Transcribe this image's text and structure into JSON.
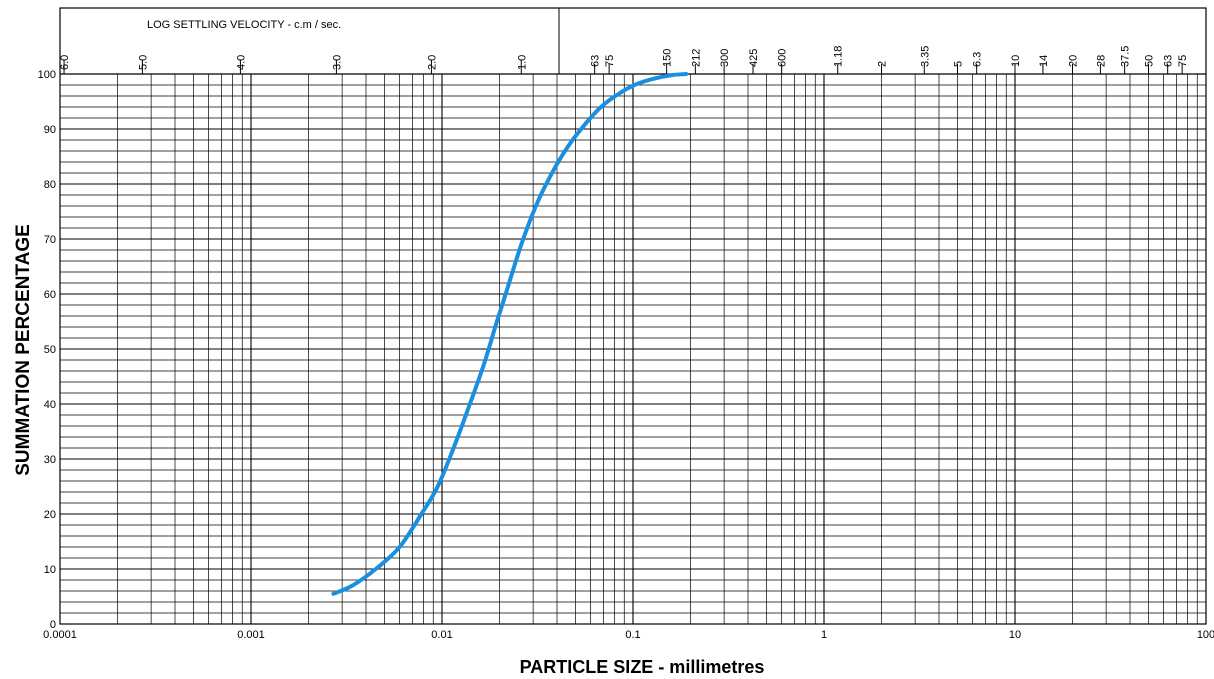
{
  "chart_data": {
    "type": "line",
    "title": "",
    "xlabel": "PARTICLE SIZE - millimetres",
    "ylabel": "SUMMATION PERCENTAGE",
    "top_axis_label": "LOG SETTLING VELOCITY - c.m / sec.",
    "x_scale": "log",
    "xlim": [
      0.0001,
      100
    ],
    "ylim": [
      0,
      100
    ],
    "grid": true,
    "x_ticks": [
      {
        "value": 0.0001,
        "label": "0.0001"
      },
      {
        "value": 0.001,
        "label": "0.001"
      },
      {
        "value": 0.01,
        "label": "0.01"
      },
      {
        "value": 0.1,
        "label": "0.1"
      },
      {
        "value": 1,
        "label": "1"
      },
      {
        "value": 10,
        "label": "10"
      },
      {
        "value": 100,
        "label": "100"
      }
    ],
    "y_ticks": [
      0,
      10,
      20,
      30,
      40,
      50,
      60,
      70,
      80,
      90,
      100
    ],
    "settling_velocity_ticks": [
      {
        "value": 0.000105,
        "label": "6.0"
      },
      {
        "value": 0.00027,
        "label": "5.0"
      },
      {
        "value": 0.00088,
        "label": "4.0"
      },
      {
        "value": 0.0028,
        "label": "3.0"
      },
      {
        "value": 0.0088,
        "label": "2.0"
      },
      {
        "value": 0.026,
        "label": "1.0"
      }
    ],
    "sieve_ticks": [
      {
        "value": 0.063,
        "label": "63"
      },
      {
        "value": 0.075,
        "label": "75"
      },
      {
        "value": 0.15,
        "label": "150"
      },
      {
        "value": 0.212,
        "label": "212"
      },
      {
        "value": 0.3,
        "label": "300"
      },
      {
        "value": 0.425,
        "label": "425"
      },
      {
        "value": 0.6,
        "label": "600"
      },
      {
        "value": 1.18,
        "label": "1.18"
      },
      {
        "value": 2,
        "label": "2"
      },
      {
        "value": 3.35,
        "label": "3.35"
      },
      {
        "value": 5,
        "label": "5"
      },
      {
        "value": 6.3,
        "label": "6.3"
      },
      {
        "value": 10,
        "label": "10"
      },
      {
        "value": 14,
        "label": "14"
      },
      {
        "value": 20,
        "label": "20"
      },
      {
        "value": 28,
        "label": "28"
      },
      {
        "value": 37.5,
        "label": "37.5"
      },
      {
        "value": 50,
        "label": "50"
      },
      {
        "value": 63,
        "label": "63"
      },
      {
        "value": 75,
        "label": "75"
      }
    ],
    "series": [
      {
        "color": "#1a8fe0",
        "x": [
          0.0027,
          0.0034,
          0.0045,
          0.006,
          0.0078,
          0.0095,
          0.0115,
          0.014,
          0.0165,
          0.019,
          0.022,
          0.026,
          0.031,
          0.037,
          0.045,
          0.055,
          0.068,
          0.085,
          0.105,
          0.13,
          0.16,
          0.19
        ],
        "y": [
          5.5,
          7,
          10,
          14,
          20,
          25,
          32,
          40,
          47,
          54,
          61,
          69,
          76,
          81.5,
          86.5,
          90.5,
          94,
          96.5,
          98.2,
          99.2,
          99.8,
          100
        ]
      }
    ]
  }
}
